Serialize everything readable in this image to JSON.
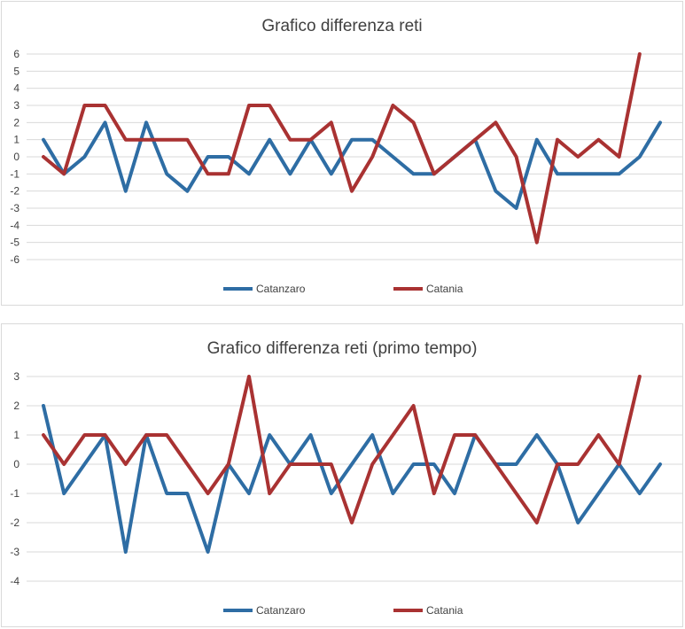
{
  "chart_data": [
    {
      "type": "line",
      "title": "Grafico differenza reti",
      "ylim": [
        -6,
        6
      ],
      "ylabels": [
        "6",
        "5",
        "4",
        "3",
        "2",
        "1",
        "0",
        "-1",
        "-2",
        "-3",
        "-4",
        "-5",
        "-6"
      ],
      "grid": true,
      "legend_position": "bottom",
      "series": [
        {
          "name": "Catanzaro",
          "color": "#2e6da4",
          "values": [
            1,
            -1,
            0,
            2,
            -2,
            2,
            -1,
            -2,
            0,
            0,
            -1,
            1,
            -1,
            1,
            -1,
            1,
            1,
            0,
            -1,
            -1,
            null,
            1,
            -2,
            -3,
            1,
            -1,
            -1,
            -1,
            -1,
            0,
            2
          ]
        },
        {
          "name": "Catania",
          "color": "#a93232",
          "values": [
            0,
            -1,
            3,
            3,
            1,
            1,
            1,
            1,
            -1,
            -1,
            3,
            3,
            1,
            1,
            2,
            -2,
            0,
            3,
            2,
            -1,
            null,
            1,
            2,
            0,
            -5,
            1,
            0,
            1,
            0,
            6
          ]
        }
      ]
    },
    {
      "type": "line",
      "title": "Grafico differenza reti (primo tempo)",
      "ylim": [
        -4,
        3
      ],
      "ylabels": [
        "3",
        "2",
        "1",
        "0",
        "-1",
        "-2",
        "-3",
        "-4"
      ],
      "grid": true,
      "legend_position": "bottom",
      "series": [
        {
          "name": "Catanzaro",
          "color": "#2e6da4",
          "values": [
            2,
            -1,
            0,
            1,
            -3,
            1,
            -1,
            -1,
            -3,
            0,
            -1,
            1,
            0,
            1,
            -1,
            0,
            1,
            -1,
            0,
            0,
            -1,
            1,
            0,
            0,
            1,
            0,
            -2,
            -1,
            0,
            -1,
            0
          ]
        },
        {
          "name": "Catania",
          "color": "#a93232",
          "values": [
            1,
            0,
            1,
            1,
            0,
            1,
            1,
            0,
            -1,
            0,
            3,
            -1,
            0,
            0,
            0,
            -2,
            0,
            1,
            2,
            -1,
            1,
            1,
            0,
            -1,
            -2,
            0,
            0,
            1,
            0,
            3
          ]
        }
      ]
    }
  ]
}
